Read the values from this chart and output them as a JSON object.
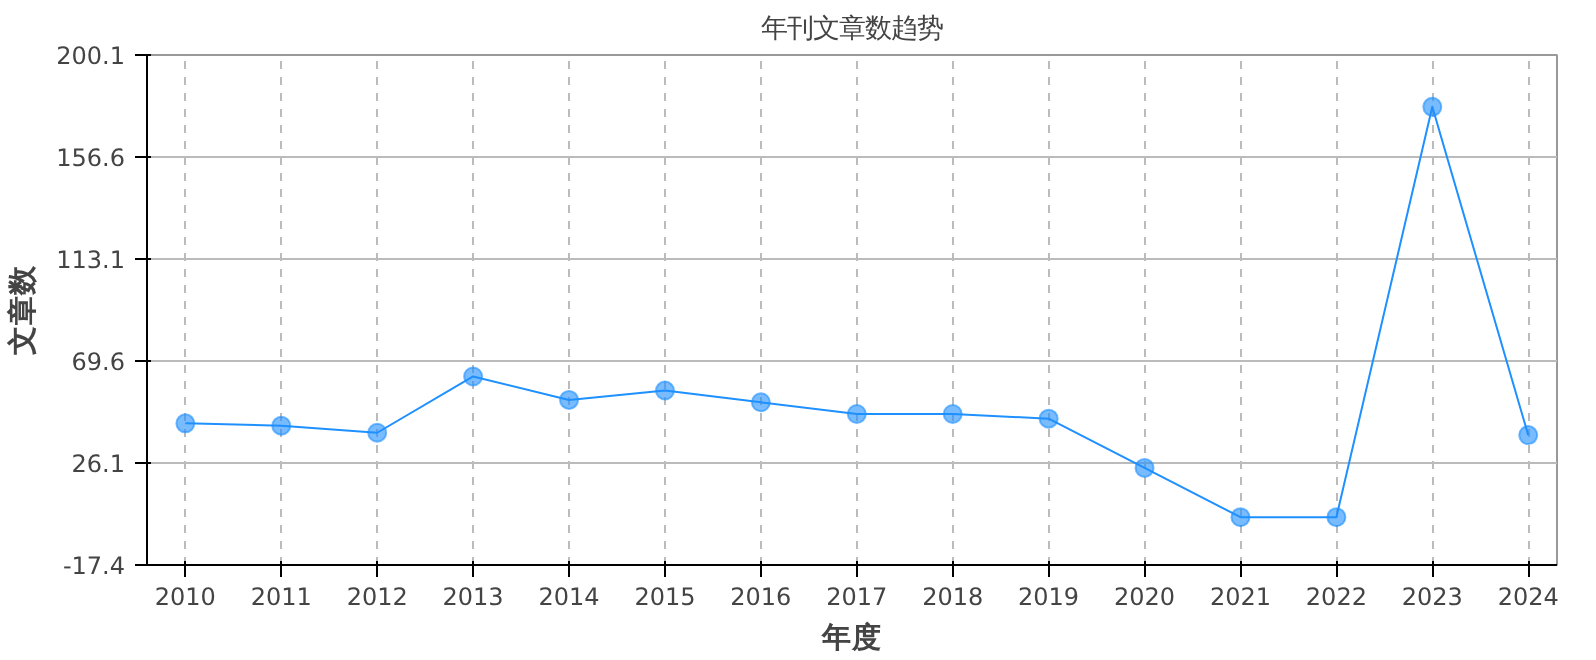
{
  "chart_data": {
    "type": "line",
    "title": "年刊文章数趋势",
    "xlabel": "年度",
    "ylabel": "文章数",
    "x": [
      2010,
      2011,
      2012,
      2013,
      2014,
      2015,
      2016,
      2017,
      2018,
      2019,
      2020,
      2021,
      2022,
      2023,
      2024
    ],
    "series": [
      {
        "color": "#1e90ff",
        "values": [
          43,
          42,
          39,
          63,
          53,
          57,
          52,
          47,
          47,
          45,
          24,
          3,
          3,
          178,
          38
        ]
      }
    ],
    "xlim": [
      2009.6,
      2024.3
    ],
    "xticks": [
      2010,
      2011,
      2012,
      2013,
      2014,
      2015,
      2016,
      2017,
      2018,
      2019,
      2020,
      2021,
      2022,
      2023,
      2024
    ],
    "ylim": [
      -17.4,
      200.1
    ],
    "yticks": [
      -17.4,
      26.1,
      69.6,
      113.1,
      156.6,
      200.1
    ],
    "grid": true,
    "marker": "circle",
    "line_style": "solid"
  }
}
